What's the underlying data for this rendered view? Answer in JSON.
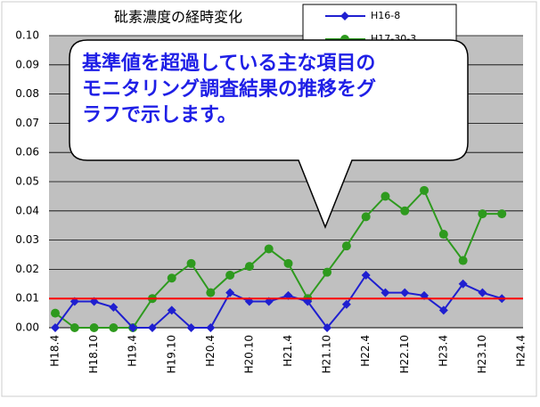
{
  "chart_data": {
    "type": "line",
    "title": "砒素濃度の経時変化",
    "categories": [
      "H18.4",
      null,
      "H18.10",
      null,
      "H19.4",
      null,
      "H19.10",
      null,
      "H20.4",
      null,
      "H20.10",
      null,
      "H21.4",
      null,
      "H21.10",
      null,
      "H22.4",
      null,
      "H22.10",
      null,
      "H23.4",
      null,
      "H23.10",
      null,
      "H24.4"
    ],
    "series": [
      {
        "name": "H16-8",
        "color": "#1f1fd0",
        "marker": "diamond",
        "values": [
          0,
          0.009,
          0.009,
          0.007,
          0,
          0,
          0.006,
          0,
          0,
          0.012,
          0.009,
          0.009,
          0.011,
          0.009,
          0,
          0.008,
          0.018,
          0.012,
          0.012,
          0.011,
          0.006,
          0.015,
          0.012,
          0.01,
          null
        ]
      },
      {
        "name": "H17-30-3",
        "color": "#2e9a1e",
        "marker": "circle",
        "values": [
          0.005,
          0,
          0,
          0,
          0,
          0.01,
          0.017,
          0.022,
          0.012,
          0.018,
          0.021,
          0.027,
          0.022,
          0.01,
          0.019,
          0.028,
          0.038,
          0.045,
          0.04,
          0.047,
          0.032,
          0.023,
          0.039,
          0.039,
          null
        ]
      }
    ],
    "threshold": {
      "value": 0.01,
      "color": "#ff0000"
    },
    "ylim": [
      0,
      0.1
    ],
    "yticks": [
      {
        "value": 0,
        "label": "0.00"
      },
      0.01,
      0.02,
      0.03,
      0.04,
      0.05,
      0.06,
      0.07,
      0.08,
      0.09,
      {
        "value": 0.1,
        "label": "0.10"
      }
    ],
    "grid": true,
    "callout": [
      "基準値を超過している主な項目の",
      "モニタリング調査結果の推移をグ",
      "ラフで示します。"
    ]
  }
}
